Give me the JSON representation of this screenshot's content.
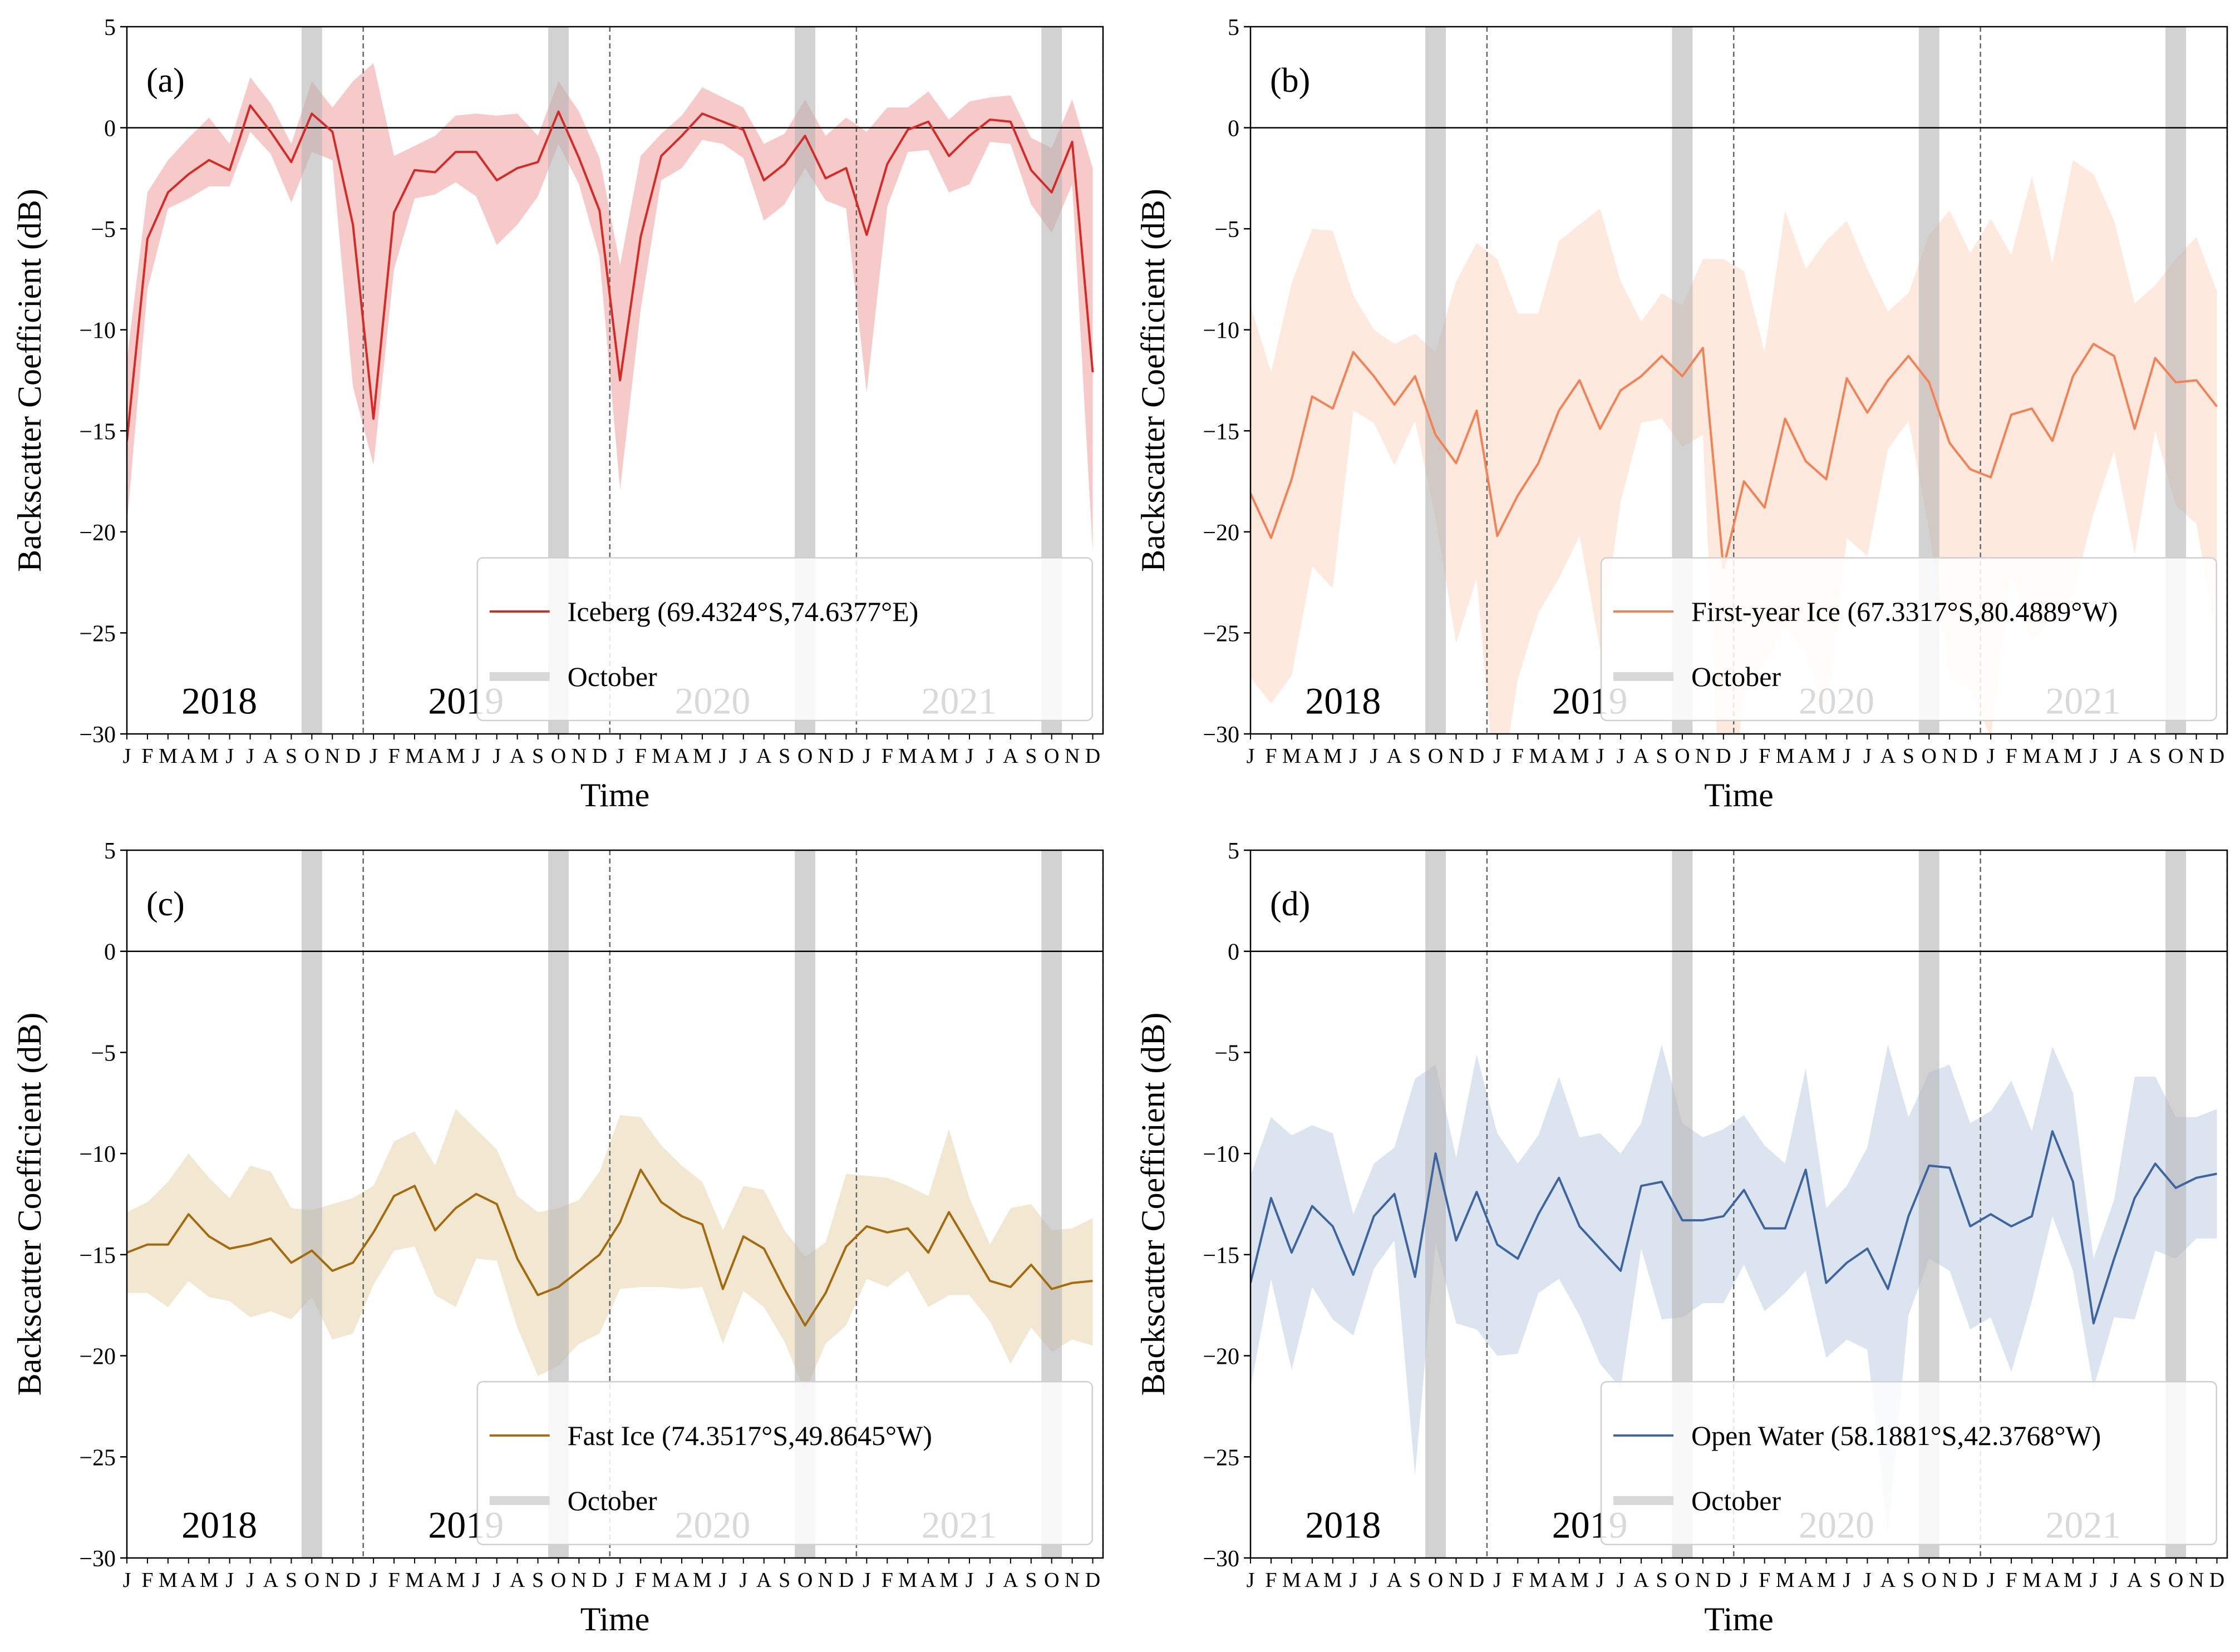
{
  "figure": {
    "xlabel": "Time",
    "ylabel": "Backscatter Coefficient (dB)",
    "month_letters": [
      "J",
      "F",
      "M",
      "A",
      "M",
      "J",
      "J",
      "A",
      "S",
      "O",
      "N",
      "D"
    ],
    "years": [
      "2018",
      "2019",
      "2020",
      "2021"
    ],
    "yticks": [
      "5",
      "0",
      "−5",
      "−10",
      "−15",
      "−20",
      "−25",
      "−30"
    ],
    "legend_band_label": "October",
    "band_color": "#b4b4b4"
  },
  "chart_data": [
    {
      "type": "line",
      "panel": "(a)",
      "ylim": [
        -30,
        5
      ],
      "xlim": [
        0,
        47.5
      ],
      "color": "#d62a26",
      "fill_color": "#f0a6a4",
      "series": [
        {
          "name": "Iceberg (69.4324°S,74.6377°E)",
          "values": [
            -15.5,
            -5.5,
            -3.2,
            -2.3,
            -1.6,
            -2.1,
            1.1,
            -0.2,
            -1.7,
            0.7,
            -0.2,
            -4.8,
            -14.4,
            -4.2,
            -2.1,
            -2.2,
            -1.2,
            -1.2,
            -2.6,
            -2.0,
            -1.7,
            0.8,
            -1.5,
            -4.1,
            -12.5,
            -5.4,
            -1.4,
            -0.4,
            0.7,
            0.3,
            -0.1,
            -2.6,
            -1.8,
            -0.4,
            -2.5,
            -2.0,
            -5.3,
            -1.8,
            -0.1,
            0.3,
            -1.4,
            -0.4,
            0.4,
            0.3,
            -2.1,
            -3.2,
            -0.7,
            -12.1
          ],
          "upper": [
            -11.5,
            -3.2,
            -1.6,
            -0.5,
            0.5,
            -0.8,
            2.5,
            1.2,
            -0.8,
            2.3,
            1.0,
            2.3,
            3.2,
            -1.4,
            -0.9,
            -0.4,
            0.6,
            0.7,
            0.6,
            0.7,
            -0.4,
            2.3,
            0.8,
            -1.5,
            -6.8,
            -1.4,
            -0.3,
            0.6,
            2.0,
            1.5,
            1.0,
            -0.8,
            -0.3,
            1.4,
            -0.4,
            0.5,
            -0.2,
            1.0,
            1.0,
            1.8,
            0.4,
            1.3,
            1.5,
            1.6,
            -0.5,
            -1.0,
            1.4,
            -2.0
          ],
          "lower": [
            -19.6,
            -8.0,
            -4.0,
            -3.5,
            -2.9,
            -2.9,
            -0.2,
            -1.3,
            -3.7,
            -1.2,
            -1.6,
            -12.8,
            -16.7,
            -7.0,
            -3.5,
            -3.3,
            -2.7,
            -3.4,
            -5.8,
            -4.8,
            -3.4,
            -0.8,
            -2.8,
            -6.4,
            -17.9,
            -9.0,
            -2.6,
            -2.0,
            -0.6,
            -0.8,
            -1.5,
            -4.6,
            -3.8,
            -2.0,
            -3.6,
            -4.0,
            -13.1,
            -3.9,
            -1.2,
            -1.1,
            -3.2,
            -2.8,
            -0.7,
            -0.8,
            -3.8,
            -5.2,
            -2.8,
            -21.0
          ]
        }
      ]
    },
    {
      "type": "line",
      "panel": "(b)",
      "ylim": [
        -30,
        5
      ],
      "xlim": [
        0,
        47.5
      ],
      "color": "#f48153",
      "fill_color": "#fddac8",
      "series": [
        {
          "name": "First-year Ice (67.3317°S,80.4889°W)",
          "values": [
            -18.1,
            -20.3,
            -17.4,
            -13.3,
            -13.9,
            -11.1,
            -12.3,
            -13.7,
            -12.3,
            -15.2,
            -16.6,
            -14.0,
            -20.2,
            -18.2,
            -16.6,
            -14.0,
            -12.5,
            -14.9,
            -13.0,
            -12.3,
            -11.3,
            -12.3,
            -10.9,
            -21.8,
            -17.5,
            -18.8,
            -14.4,
            -16.5,
            -17.4,
            -12.4,
            -14.1,
            -12.5,
            -11.3,
            -12.6,
            -15.6,
            -16.9,
            -17.3,
            -14.2,
            -13.9,
            -15.5,
            -12.3,
            -10.7,
            -11.3,
            -14.9,
            -11.4,
            -12.6,
            -12.5,
            -13.8
          ],
          "upper": [
            -8.8,
            -12.1,
            -7.7,
            -5.0,
            -5.1,
            -8.3,
            -10.0,
            -10.7,
            -10.2,
            -11.1,
            -7.6,
            -5.7,
            -6.5,
            -9.2,
            -9.2,
            -5.6,
            -4.8,
            -4.0,
            -7.6,
            -9.6,
            -8.2,
            -8.8,
            -6.5,
            -6.5,
            -7.1,
            -11.1,
            -4.1,
            -7.0,
            -5.6,
            -4.6,
            -7.0,
            -9.1,
            -8.2,
            -5.3,
            -4.1,
            -6.2,
            -4.5,
            -6.3,
            -2.4,
            -6.7,
            -1.6,
            -2.3,
            -4.6,
            -8.7,
            -7.8,
            -6.5,
            -5.4,
            -8.1
          ],
          "lower": [
            -27.2,
            -28.5,
            -27.1,
            -21.7,
            -22.8,
            -14.0,
            -14.6,
            -16.7,
            -14.5,
            -19.3,
            -25.5,
            -22.3,
            -34.0,
            -27.3,
            -24.0,
            -22.3,
            -20.2,
            -25.8,
            -18.5,
            -14.6,
            -14.4,
            -15.8,
            -15.2,
            -37.1,
            -28.0,
            -26.5,
            -24.7,
            -26.0,
            -29.1,
            -20.3,
            -21.2,
            -15.9,
            -14.5,
            -19.9,
            -27.2,
            -27.7,
            -30.2,
            -22.1,
            -25.4,
            -24.3,
            -23.1,
            -19.1,
            -16.0,
            -21.1,
            -15.0,
            -18.7,
            -19.6,
            -25.5
          ]
        }
      ]
    },
    {
      "type": "line",
      "panel": "(c)",
      "ylim": [
        -30,
        5
      ],
      "xlim": [
        0,
        47.5
      ],
      "color": "#a36a0e",
      "fill_color": "#e9d8b4",
      "series": [
        {
          "name": "Fast Ice (74.3517°S,49.8645°W)",
          "values": [
            -14.9,
            -14.5,
            -14.5,
            -13.0,
            -14.1,
            -14.7,
            -14.5,
            -14.2,
            -15.4,
            -14.8,
            -15.8,
            -15.4,
            -13.9,
            -12.1,
            -11.6,
            -13.8,
            -12.7,
            -12.0,
            -12.5,
            -15.2,
            -17.0,
            -16.6,
            -15.8,
            -15.0,
            -13.4,
            -10.8,
            -12.4,
            -13.1,
            -13.5,
            -16.7,
            -14.1,
            -14.7,
            -16.7,
            -18.5,
            -16.9,
            -14.6,
            -13.6,
            -13.9,
            -13.7,
            -14.9,
            -12.9,
            -14.6,
            -16.3,
            -16.6,
            -15.5,
            -16.7,
            -16.4,
            -16.3
          ],
          "upper": [
            -12.9,
            -12.4,
            -11.4,
            -10.0,
            -11.2,
            -12.2,
            -10.6,
            -10.9,
            -12.7,
            -12.8,
            -12.5,
            -12.2,
            -11.6,
            -9.4,
            -8.9,
            -10.6,
            -7.8,
            -8.8,
            -9.8,
            -12.1,
            -12.9,
            -12.7,
            -12.3,
            -10.9,
            -8.1,
            -8.2,
            -9.6,
            -10.6,
            -11.4,
            -13.8,
            -11.6,
            -11.8,
            -13.8,
            -15.1,
            -14.4,
            -11.0,
            -11.1,
            -11.2,
            -11.6,
            -12.1,
            -8.8,
            -12.2,
            -14.5,
            -12.7,
            -12.5,
            -13.8,
            -13.7,
            -13.2
          ],
          "lower": [
            -16.9,
            -16.9,
            -17.6,
            -16.3,
            -17.1,
            -17.3,
            -18.1,
            -17.8,
            -18.2,
            -17.1,
            -19.2,
            -18.9,
            -16.5,
            -14.8,
            -14.6,
            -17.0,
            -17.6,
            -15.2,
            -15.3,
            -18.6,
            -21.0,
            -20.5,
            -19.4,
            -18.9,
            -16.7,
            -16.6,
            -16.6,
            -16.7,
            -16.6,
            -19.4,
            -16.8,
            -17.6,
            -19.3,
            -21.8,
            -19.4,
            -18.5,
            -16.2,
            -16.6,
            -15.8,
            -17.6,
            -17.0,
            -17.0,
            -18.3,
            -20.4,
            -18.6,
            -19.8,
            -19.2,
            -19.5
          ]
        }
      ]
    },
    {
      "type": "line",
      "panel": "(d)",
      "ylim": [
        -30,
        5
      ],
      "xlim": [
        0,
        47.5
      ],
      "color": "#3d65a0",
      "fill_color": "#c5d2e5",
      "series": [
        {
          "name": "Open Water (58.1881°S,42.3768°W)",
          "values": [
            -16.4,
            -12.2,
            -14.9,
            -12.6,
            -13.6,
            -16.0,
            -13.1,
            -12.0,
            -16.1,
            -10.0,
            -14.3,
            -11.9,
            -14.5,
            -15.2,
            -13.0,
            -11.2,
            -13.6,
            -14.7,
            -15.8,
            -11.6,
            -11.4,
            -13.3,
            -13.3,
            -13.1,
            -11.8,
            -13.7,
            -13.7,
            -10.8,
            -16.4,
            -15.4,
            -14.7,
            -16.7,
            -13.1,
            -10.6,
            -10.7,
            -13.6,
            -13.0,
            -13.6,
            -13.1,
            -8.9,
            -11.4,
            -18.4,
            -15.2,
            -12.2,
            -10.5,
            -11.7,
            -11.2,
            -11.0
          ],
          "upper": [
            -11.1,
            -8.2,
            -9.1,
            -8.6,
            -9.0,
            -13.0,
            -10.5,
            -9.7,
            -6.3,
            -5.6,
            -10.2,
            -5.1,
            -9.0,
            -10.5,
            -9.1,
            -6.2,
            -9.2,
            -9.0,
            -10.0,
            -8.5,
            -4.6,
            -8.5,
            -9.2,
            -8.8,
            -8.1,
            -9.6,
            -10.5,
            -5.8,
            -12.7,
            -11.6,
            -9.7,
            -4.6,
            -8.2,
            -6.0,
            -5.6,
            -8.5,
            -7.9,
            -6.4,
            -8.9,
            -4.7,
            -7.0,
            -15.2,
            -12.3,
            -6.2,
            -6.2,
            -8.2,
            -8.2,
            -7.8
          ],
          "lower": [
            -21.6,
            -16.2,
            -20.7,
            -16.6,
            -18.2,
            -19.0,
            -15.7,
            -14.3,
            -25.9,
            -14.4,
            -18.4,
            -18.7,
            -20.0,
            -19.9,
            -16.9,
            -16.2,
            -18.0,
            -20.4,
            -21.6,
            -14.7,
            -18.2,
            -18.1,
            -17.4,
            -17.4,
            -15.5,
            -17.8,
            -16.9,
            -15.8,
            -20.1,
            -19.2,
            -19.7,
            -28.8,
            -18.0,
            -15.2,
            -15.8,
            -18.7,
            -18.1,
            -20.8,
            -17.3,
            -13.1,
            -15.8,
            -21.6,
            -18.1,
            -18.2,
            -14.8,
            -15.2,
            -14.2,
            -14.2
          ]
        }
      ]
    }
  ]
}
